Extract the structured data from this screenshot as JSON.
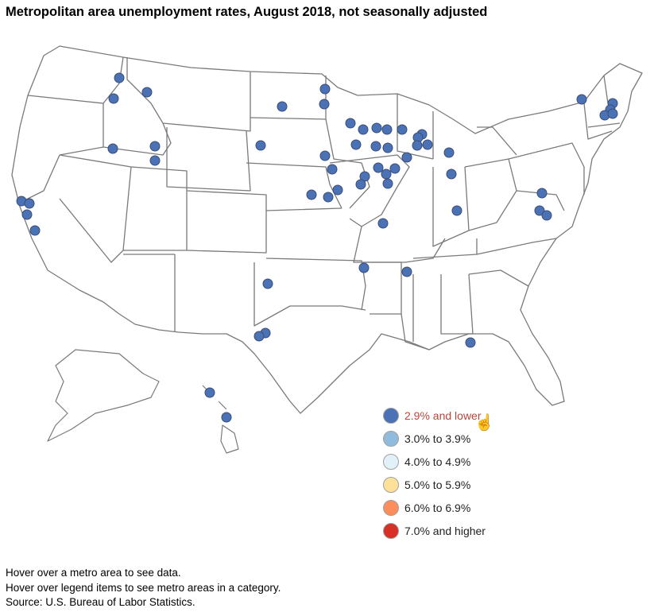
{
  "title": "Metropolitan area unemployment rates, August 2018, not seasonally adjusted",
  "legend": [
    {
      "label": "2.9% and lower",
      "color": "#4a72b5",
      "active": true
    },
    {
      "label": "3.0% to 3.9%",
      "color": "#91bbdd",
      "active": false
    },
    {
      "label": "4.0% to 4.9%",
      "color": "#e2f1f8",
      "active": false
    },
    {
      "label": "5.0% to 5.9%",
      "color": "#fde199",
      "active": false
    },
    {
      "label": "6.0% to 6.9%",
      "color": "#fb8e5c",
      "active": false
    },
    {
      "label": "7.0% and higher",
      "color": "#d73027",
      "active": false
    }
  ],
  "highlighted_category": "2.9% and lower",
  "footer": {
    "line1": "Hover over a metro area to see data.",
    "line2": "Hover over legend items to see metro areas in a category.",
    "line3": "Source: U.S. Bureau of Labor Statistics."
  },
  "icons": {
    "cursor": "hand-pointer-icon"
  }
}
